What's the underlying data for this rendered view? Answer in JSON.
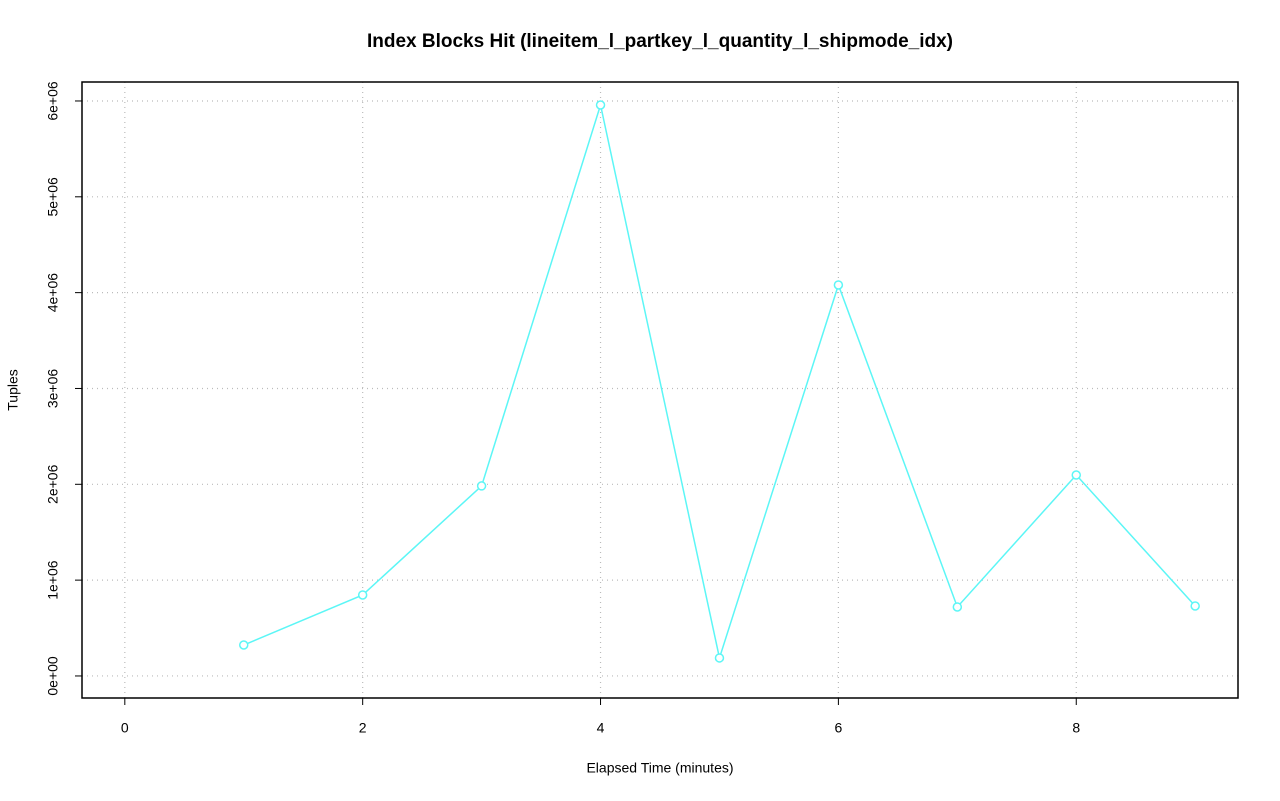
{
  "chart_data": {
    "type": "line",
    "title": "Index Blocks Hit (lineitem_l_partkey_l_quantity_l_shipmode_idx)",
    "x_label": "Elapsed Time (minutes)",
    "y_label": "Tuples",
    "x": [
      1,
      2,
      3,
      4,
      5,
      6,
      7,
      8,
      9
    ],
    "values": [
      323000,
      845000,
      1983000,
      5958000,
      188000,
      4080000,
      720000,
      2097000,
      730000
    ],
    "color": "#5cf6f6",
    "xlim": [
      -0.36,
      9.36
    ],
    "ylim": [
      -230000,
      6198000
    ],
    "xticks": [
      0,
      2,
      4,
      6,
      8
    ],
    "yticks": [
      {
        "value": 0,
        "label": "0e+00"
      },
      {
        "value": 1000000,
        "label": "1e+06"
      },
      {
        "value": 2000000,
        "label": "2e+06"
      },
      {
        "value": 3000000,
        "label": "3e+06"
      },
      {
        "value": 4000000,
        "label": "4e+06"
      },
      {
        "value": 5000000,
        "label": "5e+06"
      },
      {
        "value": 6000000,
        "label": "6e+06"
      }
    ],
    "grid": true
  }
}
